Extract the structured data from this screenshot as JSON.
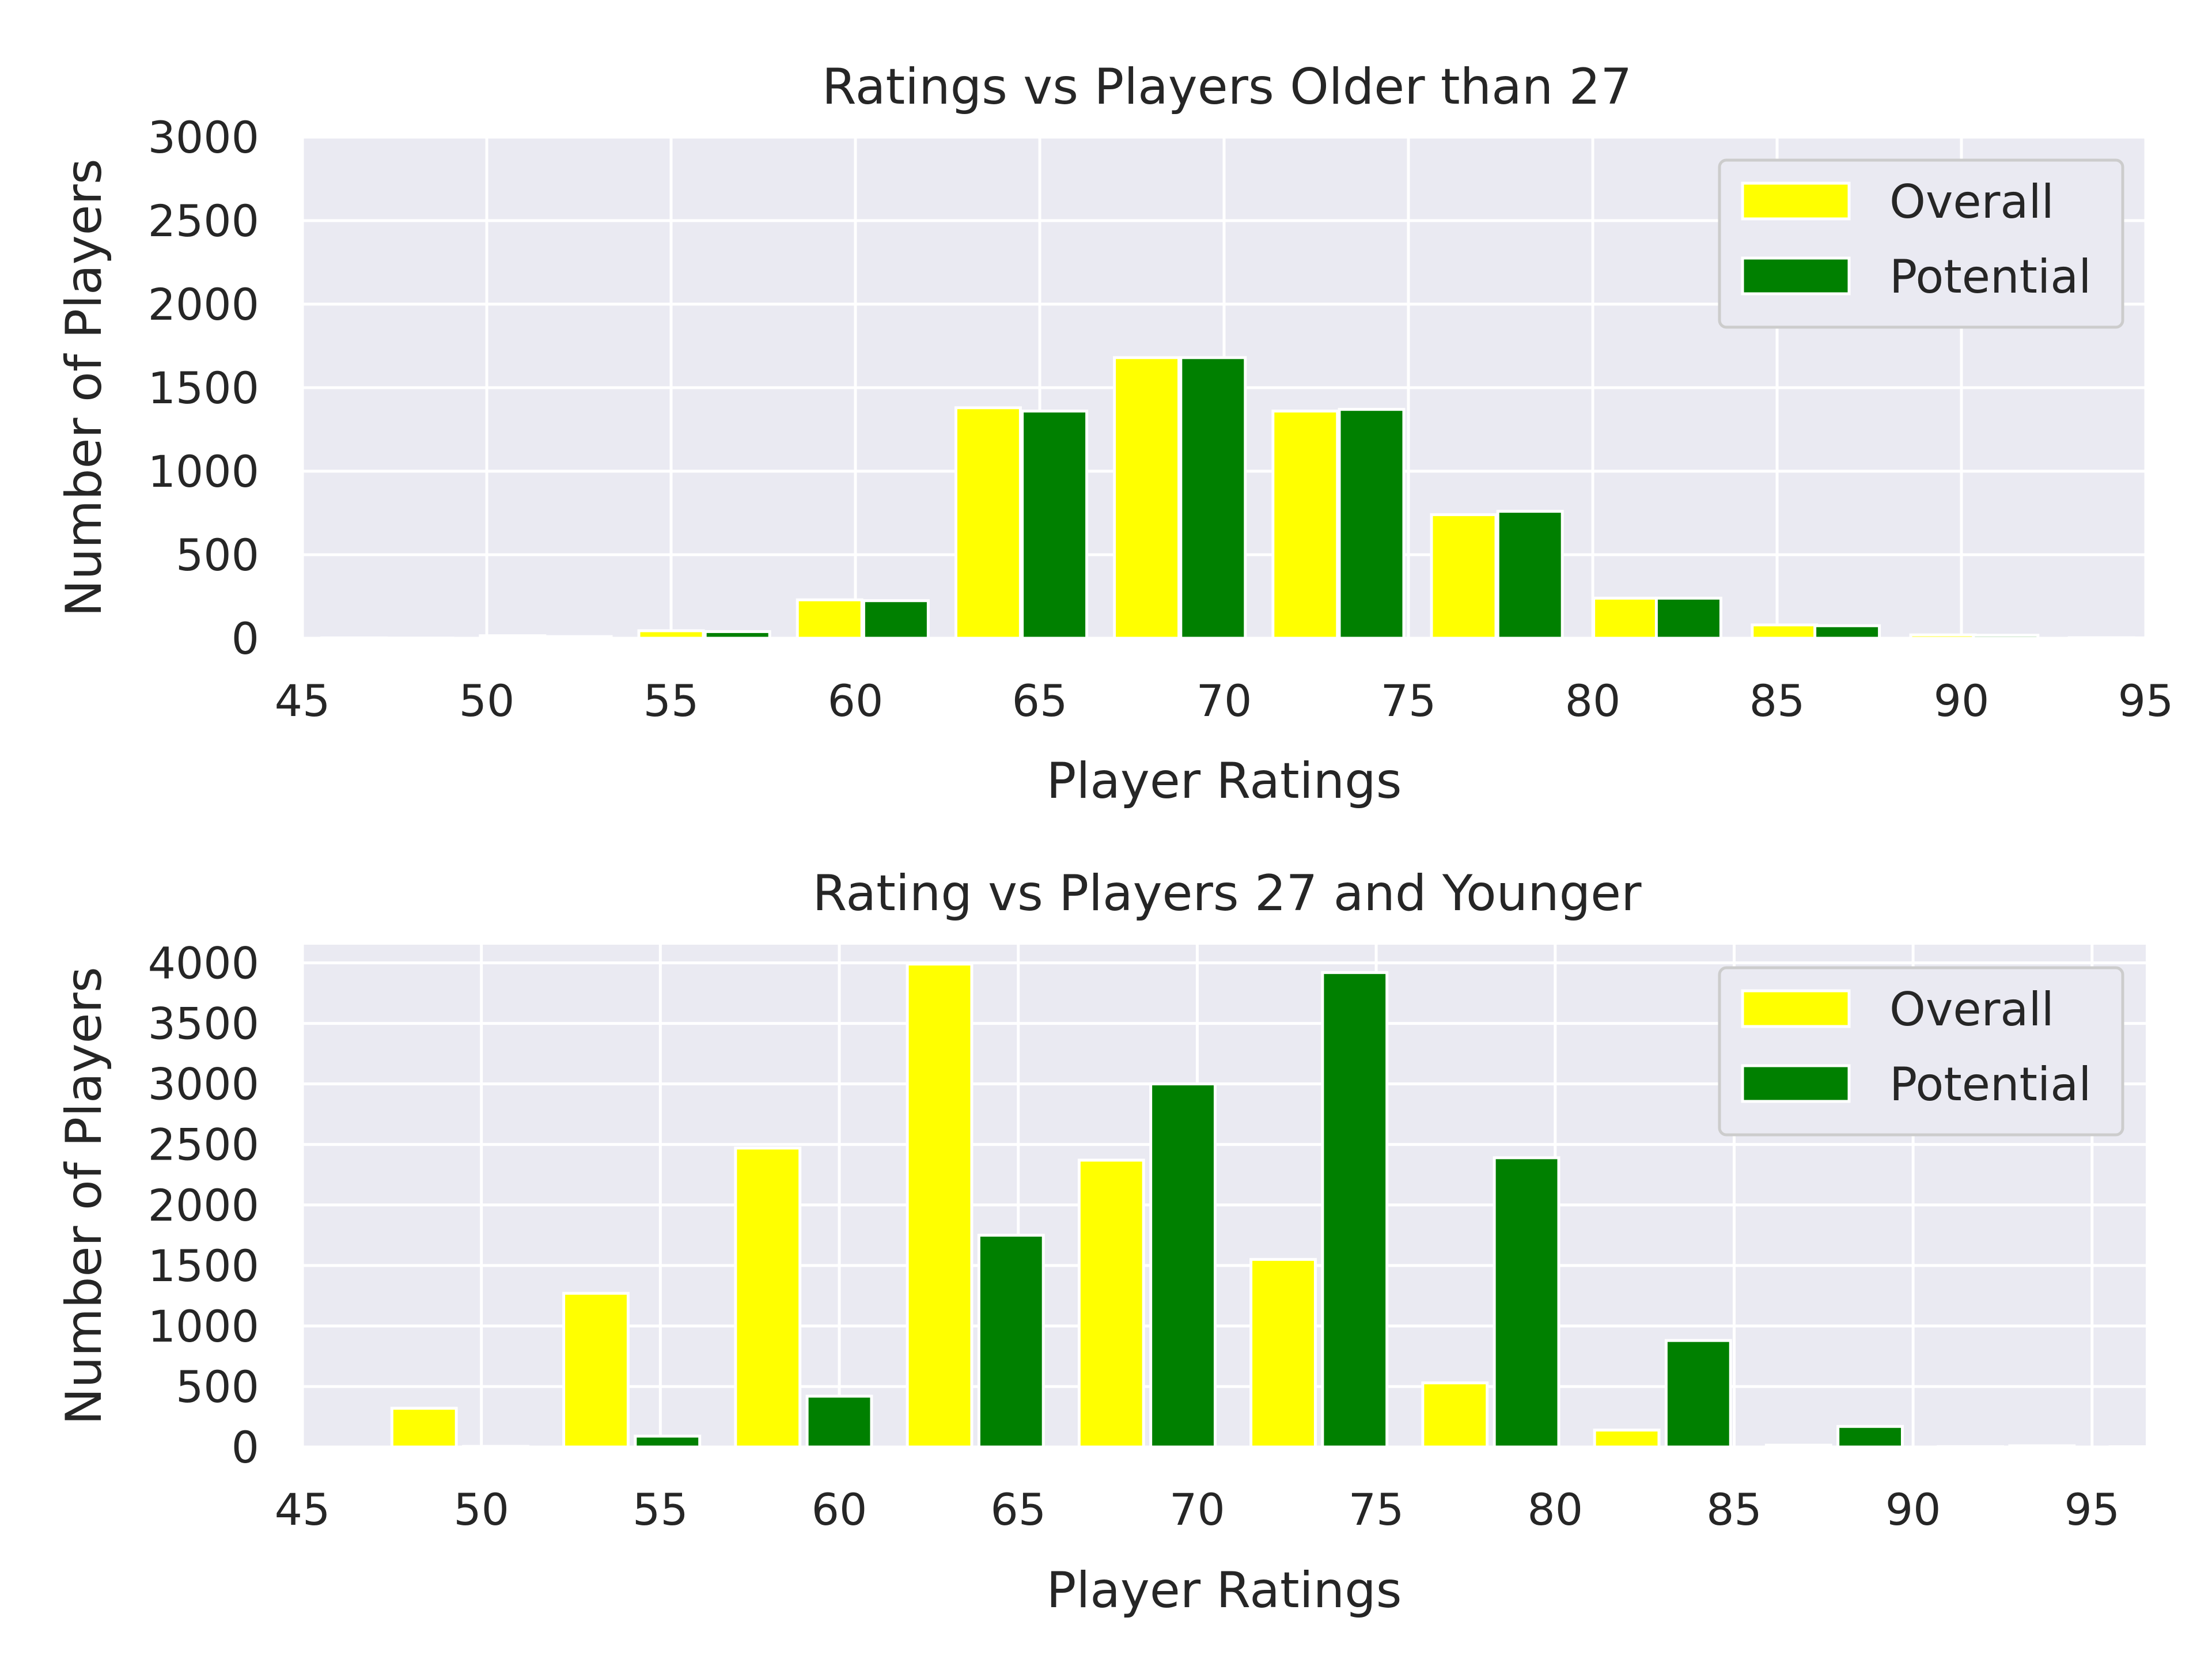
{
  "chart_data": [
    {
      "type": "bar",
      "title": "Ratings vs Players Older than 27",
      "xlabel": "Player Ratings",
      "ylabel": "Number of Players",
      "xlim": [
        45,
        95
      ],
      "ylim": [
        0,
        3000
      ],
      "xticks": [
        45,
        50,
        55,
        60,
        65,
        70,
        75,
        80,
        85,
        90,
        95
      ],
      "yticks": [
        0,
        500,
        1000,
        1500,
        2000,
        2500,
        3000
      ],
      "grid": true,
      "legend": "top-right",
      "bar_width": 1.75,
      "series": [
        {
          "name": "Overall",
          "color": "#ffff00",
          "x": [
            46.4,
            50.7,
            55.0,
            59.3,
            63.6,
            67.9,
            72.2,
            76.5,
            80.9,
            85.2,
            89.5,
            93.8
          ],
          "values": [
            2,
            15,
            45,
            230,
            1380,
            1680,
            1360,
            740,
            240,
            80,
            20,
            3
          ]
        },
        {
          "name": "Potential",
          "color": "#008000",
          "x": [
            48.2,
            52.5,
            56.8,
            61.1,
            65.4,
            69.7,
            74.0,
            78.3,
            82.6,
            86.9,
            91.2,
            95.5
          ],
          "values": [
            1,
            10,
            40,
            225,
            1360,
            1680,
            1370,
            760,
            240,
            75,
            18,
            2
          ]
        }
      ]
    },
    {
      "type": "bar",
      "title": "Rating vs Players 27 and Younger",
      "xlabel": "Player Ratings",
      "ylabel": "Number of Players",
      "xlim": [
        45,
        96.5
      ],
      "ylim": [
        0,
        4150
      ],
      "xticks": [
        45,
        50,
        55,
        60,
        65,
        70,
        75,
        80,
        85,
        90,
        95
      ],
      "yticks": [
        0,
        500,
        1000,
        1500,
        2000,
        2500,
        3000,
        3500,
        4000
      ],
      "grid": true,
      "legend": "top-right",
      "bar_width": 1.8,
      "series": [
        {
          "name": "Overall",
          "color": "#ffff00",
          "x": [
            48.4,
            53.2,
            58.0,
            62.8,
            67.6,
            72.4,
            77.2,
            82.0,
            86.8,
            91.6,
            96.4
          ],
          "values": [
            320,
            1270,
            2470,
            3990,
            2370,
            1550,
            530,
            140,
            15,
            3,
            2
          ]
        },
        {
          "name": "Potential",
          "color": "#008000",
          "x": [
            50.4,
            55.2,
            60.0,
            64.8,
            69.6,
            74.4,
            79.2,
            84.0,
            88.8,
            93.6,
            98.4
          ],
          "values": [
            5,
            90,
            420,
            1750,
            3000,
            3920,
            2390,
            880,
            170,
            10,
            2
          ]
        }
      ]
    }
  ]
}
